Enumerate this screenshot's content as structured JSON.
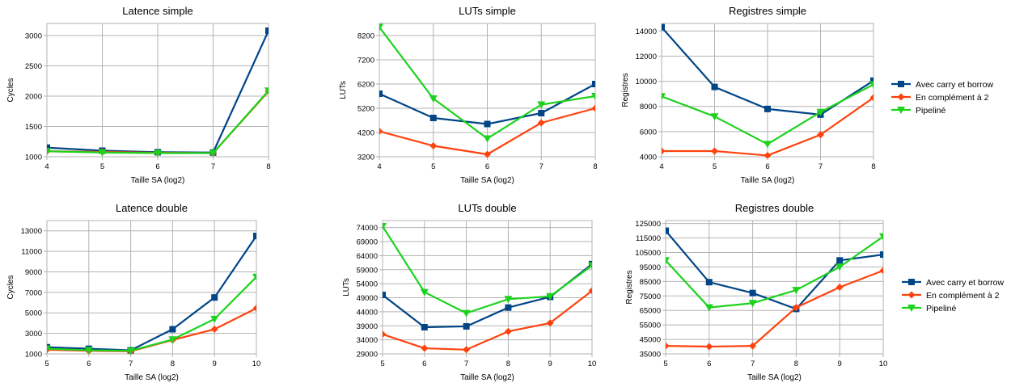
{
  "series_styles": [
    {
      "name": "Avec carry et borrow",
      "color": "#004586",
      "marker": "square"
    },
    {
      "name": "En complément à 2",
      "color": "#ff420e",
      "marker": "diamond"
    },
    {
      "name": "Pipeliné",
      "color": "#1dd21d",
      "marker": "triangle-down"
    }
  ],
  "legends": [
    {
      "position": "right of top row",
      "entries": [
        "Avec carry et borrow",
        "En complément à 2",
        "Pipeliné"
      ]
    },
    {
      "position": "right of bottom row",
      "entries": [
        "Avec carry et borrow",
        "En complément à 2",
        "Pipeliné"
      ]
    }
  ],
  "chart_data": [
    {
      "type": "line",
      "title": "Latence simple",
      "xlabel": "Taille SA (log2)",
      "ylabel": "Cycles",
      "x": [
        4,
        5,
        6,
        7,
        8
      ],
      "xlim": [
        4,
        8
      ],
      "ylim": [
        1000,
        3200
      ],
      "grid": true,
      "yticks": [
        1000,
        1500,
        2000,
        2500,
        3000
      ],
      "series": [
        {
          "name": "Avec carry et borrow",
          "values": [
            1150,
            1100,
            1075,
            1070,
            3080
          ]
        },
        {
          "name": "En complément à 2",
          "values": [
            1090,
            1080,
            1065,
            1060,
            2080
          ]
        },
        {
          "name": "Pipeliné",
          "values": [
            1090,
            1070,
            1060,
            1060,
            2090
          ]
        }
      ]
    },
    {
      "type": "line",
      "title": "LUTs simple",
      "xlabel": "Taille SA (log2)",
      "ylabel": "LUTs",
      "x": [
        4,
        5,
        6,
        7,
        8
      ],
      "xlim": [
        4,
        8
      ],
      "ylim": [
        3200,
        8700
      ],
      "grid": true,
      "yticks": [
        3200,
        4200,
        5200,
        6200,
        7200,
        8200
      ],
      "series": [
        {
          "name": "Avec carry et borrow",
          "values": [
            5800,
            4800,
            4550,
            5000,
            6200
          ]
        },
        {
          "name": "En complément à 2",
          "values": [
            4250,
            3650,
            3300,
            4600,
            5200
          ]
        },
        {
          "name": "Pipeliné",
          "values": [
            8550,
            5600,
            3950,
            5350,
            5700
          ]
        }
      ]
    },
    {
      "type": "line",
      "title": "Registres simple",
      "xlabel": "Taille SA (log2)",
      "ylabel": "Registres",
      "x": [
        4,
        5,
        6,
        7,
        8
      ],
      "xlim": [
        4,
        8
      ],
      "ylim": [
        4000,
        14600
      ],
      "grid": true,
      "yticks": [
        4000,
        6000,
        8000,
        10000,
        12000,
        14000
      ],
      "series": [
        {
          "name": "Avec carry et borrow",
          "values": [
            14300,
            9550,
            7800,
            7350,
            10050
          ]
        },
        {
          "name": "En complément à 2",
          "values": [
            4450,
            4450,
            4100,
            5750,
            8700
          ]
        },
        {
          "name": "Pipeliné",
          "values": [
            8800,
            7200,
            5000,
            7550,
            9750
          ]
        }
      ]
    },
    {
      "type": "line",
      "title": "Latence double",
      "xlabel": "Taille SA (log2)",
      "ylabel": "Cycles",
      "x": [
        5,
        6,
        7,
        8,
        9,
        10
      ],
      "xlim": [
        5,
        10
      ],
      "ylim": [
        1000,
        14000
      ],
      "grid": true,
      "yticks": [
        1000,
        3000,
        5000,
        7000,
        9000,
        11000,
        13000
      ],
      "series": [
        {
          "name": "Avec carry et borrow",
          "values": [
            1650,
            1500,
            1350,
            3400,
            6500,
            12500
          ]
        },
        {
          "name": "En complément à 2",
          "values": [
            1400,
            1300,
            1250,
            2350,
            3400,
            5450
          ]
        },
        {
          "name": "Pipeliné",
          "values": [
            1500,
            1350,
            1300,
            2400,
            4400,
            8500
          ]
        }
      ]
    },
    {
      "type": "line",
      "title": "LUTs double",
      "xlabel": "Taille SA (log2)",
      "ylabel": "LUTs",
      "x": [
        5,
        6,
        7,
        8,
        9,
        10
      ],
      "xlim": [
        5,
        10
      ],
      "ylim": [
        29000,
        76500
      ],
      "grid": true,
      "yticks": [
        29000,
        34000,
        39000,
        44000,
        49000,
        54000,
        59000,
        64000,
        69000,
        74000
      ],
      "series": [
        {
          "name": "Avec carry et borrow",
          "values": [
            50000,
            38500,
            38800,
            45500,
            49300,
            61000
          ]
        },
        {
          "name": "En complément à 2",
          "values": [
            36000,
            31000,
            30500,
            37000,
            40000,
            51500
          ]
        },
        {
          "name": "Pipeliné",
          "values": [
            74500,
            51000,
            43500,
            48500,
            49500,
            60500
          ]
        }
      ]
    },
    {
      "type": "line",
      "title": "Registres double",
      "xlabel": "Taille SA (log2)",
      "ylabel": "Registres",
      "x": [
        5,
        6,
        7,
        8,
        9,
        10
      ],
      "xlim": [
        5,
        10
      ],
      "ylim": [
        35000,
        127000
      ],
      "grid": true,
      "yticks": [
        35000,
        45000,
        55000,
        65000,
        75000,
        85000,
        95000,
        105000,
        115000,
        125000
      ],
      "series": [
        {
          "name": "Avec carry et borrow",
          "values": [
            120000,
            84500,
            77000,
            66000,
            99500,
            103500
          ]
        },
        {
          "name": "En complément à 2",
          "values": [
            40500,
            40000,
            40500,
            67000,
            81000,
            92500
          ]
        },
        {
          "name": "Pipeliné",
          "values": [
            99500,
            67000,
            70000,
            79000,
            95000,
            116000
          ]
        }
      ]
    }
  ]
}
